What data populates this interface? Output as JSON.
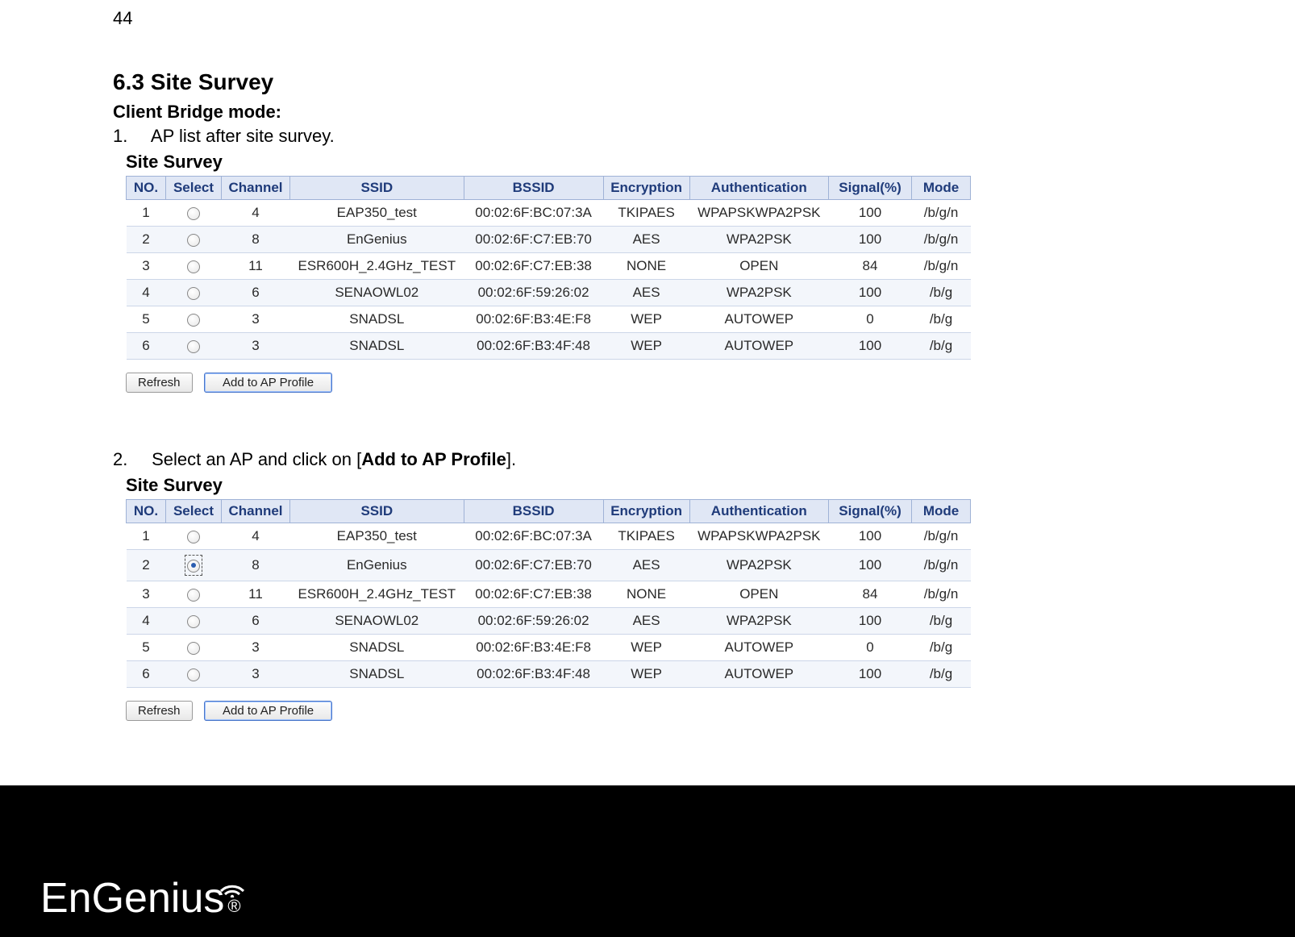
{
  "page_number": "44",
  "section_heading": "6.3   Site Survey",
  "mode_label": "Client Bridge mode:",
  "step1_num": "1.",
  "step1_text": "AP list after site survey.",
  "step2_num": "2.",
  "step2_prefix": "Select an AP and click on [",
  "step2_bold": "Add to AP Profile",
  "step2_suffix": "].",
  "survey_title": "Site Survey",
  "columns": {
    "no": "NO.",
    "select": "Select",
    "channel": "Channel",
    "ssid": "SSID",
    "bssid": "BSSID",
    "encryption": "Encryption",
    "auth": "Authentication",
    "signal": "Signal(%)",
    "mode": "Mode"
  },
  "col_widths": {
    "no": 36,
    "select": 56,
    "channel": 72,
    "ssid": 188,
    "bssid": 160,
    "encryption": 94,
    "auth": 146,
    "signal": 90,
    "mode": 60
  },
  "rows": [
    {
      "no": "1",
      "channel": "4",
      "ssid": "EAP350_test",
      "bssid": "00:02:6F:BC:07:3A",
      "enc": "TKIPAES",
      "auth": "WPAPSKWPA2PSK",
      "sig": "100",
      "mode": "/b/g/n"
    },
    {
      "no": "2",
      "channel": "8",
      "ssid": "EnGenius",
      "bssid": "00:02:6F:C7:EB:70",
      "enc": "AES",
      "auth": "WPA2PSK",
      "sig": "100",
      "mode": "/b/g/n"
    },
    {
      "no": "3",
      "channel": "11",
      "ssid": "ESR600H_2.4GHz_TEST",
      "bssid": "00:02:6F:C7:EB:38",
      "enc": "NONE",
      "auth": "OPEN",
      "sig": "84",
      "mode": "/b/g/n"
    },
    {
      "no": "4",
      "channel": "6",
      "ssid": "SENAOWL02",
      "bssid": "00:02:6F:59:26:02",
      "enc": "AES",
      "auth": "WPA2PSK",
      "sig": "100",
      "mode": "/b/g"
    },
    {
      "no": "5",
      "channel": "3",
      "ssid": "SNADSL",
      "bssid": "00:02:6F:B3:4E:F8",
      "enc": "WEP",
      "auth": "AUTOWEP",
      "sig": "0",
      "mode": "/b/g"
    },
    {
      "no": "6",
      "channel": "3",
      "ssid": "SNADSL",
      "bssid": "00:02:6F:B3:4F:48",
      "enc": "WEP",
      "auth": "AUTOWEP",
      "sig": "100",
      "mode": "/b/g"
    }
  ],
  "buttons": {
    "refresh": "Refresh",
    "add": "Add to AP Profile"
  },
  "selected_row_index_table2": 1,
  "header_bg": "#e0e7f5",
  "header_fg": "#1f3b7a",
  "row_odd_bg": "#f3f6fb",
  "row_even_bg": "#ffffff",
  "logo_text_en": "En",
  "logo_text_gen": "Gen",
  "logo_text_ius": "us",
  "logo_i": "i",
  "logo_reg": "®"
}
